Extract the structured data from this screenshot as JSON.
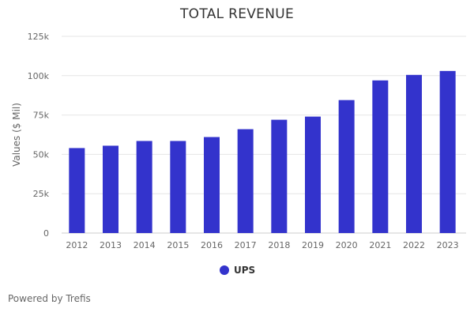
{
  "chart_data": {
    "type": "bar",
    "title": "TOTAL REVENUE",
    "xlabel": "",
    "ylabel": "Values ($ Mil)",
    "categories": [
      "2012",
      "2013",
      "2014",
      "2015",
      "2016",
      "2017",
      "2018",
      "2019",
      "2020",
      "2021",
      "2022",
      "2023"
    ],
    "series": [
      {
        "name": "UPS",
        "values": [
          54000,
          55500,
          58500,
          58500,
          61000,
          66000,
          72000,
          74000,
          84500,
          97000,
          100500,
          103000
        ],
        "color": "#3333cc"
      }
    ],
    "ylim": [
      0,
      125000
    ],
    "yticks": [
      0,
      25000,
      50000,
      75000,
      100000,
      125000
    ],
    "ytick_labels": [
      "0",
      "25k",
      "50k",
      "75k",
      "100k",
      "125k"
    ],
    "grid": true,
    "legend_position": "bottom-center"
  },
  "footer": {
    "credit": "Powered by Trefis"
  }
}
